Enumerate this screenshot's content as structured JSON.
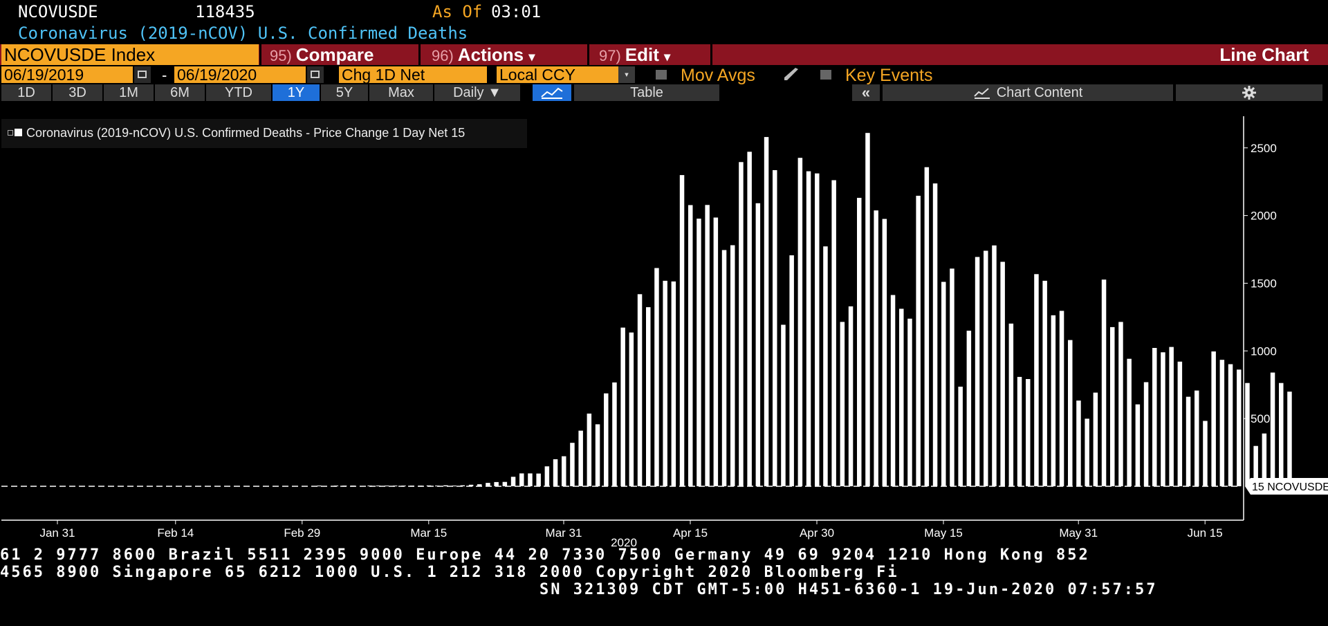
{
  "header": {
    "ticker": "NCOVUSDE",
    "last_value": "118435",
    "asof_label": "As Of",
    "asof_time": "03:01",
    "subtitle": "Coronavirus (2019-nCOV) U.S. Confirmed Deaths"
  },
  "toolbar": {
    "security": "NCOVUSDE Index",
    "compare_num": "95)",
    "compare_label": "Compare",
    "actions_num": "96)",
    "actions_label": "Actions",
    "edit_num": "97)",
    "edit_label": "Edit",
    "dropdown_glyph": "▾",
    "chart_type": "Line Chart"
  },
  "controls": {
    "start_date": "06/19/2019",
    "date_sep": "-",
    "end_date": "06/19/2020",
    "field": "Chg 1D Net",
    "currency": "Local CCY",
    "mov_avgs": "Mov Avgs",
    "key_events": "Key Events"
  },
  "periods": [
    "1D",
    "3D",
    "1M",
    "6M",
    "YTD",
    "1Y",
    "5Y",
    "Max"
  ],
  "selected_period": "1Y",
  "frequency": "Daily ▼",
  "table_label": "Table",
  "collapse_label": "«",
  "chart_content_label": "Chart Content",
  "settings_icon": "gear-icon",
  "colors": {
    "orange": "#f5a623",
    "red_bar": "#8b1421",
    "blue_sel": "#1e6fd9",
    "cyan": "#4fc3f7"
  },
  "chart_data": {
    "type": "bar",
    "legend": "Coronavirus (2019-nCOV) U.S. Confirmed Deaths - Price Change 1 Day Net 15",
    "x_tick_labels": [
      "Jan 31",
      "Feb 14",
      "Feb 29",
      "Mar 15",
      "Mar 31",
      "Apr 15",
      "Apr 30",
      "May 15",
      "May 31",
      "Jun 15"
    ],
    "x_year_label": "2020",
    "y_tick_labels": [
      "500",
      "1000",
      "1500",
      "2000",
      "2500"
    ],
    "ylim": [
      0,
      2700
    ],
    "last_value_tag": "15 NCOVUSDE",
    "last_value": 15,
    "grid": false,
    "series": [
      {
        "start_date": "2020-01-21",
        "values": [
          0,
          0,
          0,
          0,
          0,
          0,
          0,
          0,
          0,
          0,
          0,
          0,
          0,
          0,
          0,
          0,
          0,
          0,
          0,
          0,
          0,
          0,
          0,
          0,
          0,
          0,
          0,
          0,
          0,
          0,
          0,
          0,
          0,
          0,
          0,
          0,
          0,
          0,
          0,
          0,
          0,
          1,
          0,
          2,
          1,
          2,
          0,
          1,
          1,
          2,
          4,
          1,
          4,
          3,
          6,
          4,
          7,
          5,
          7,
          11,
          15,
          25,
          31,
          32,
          70,
          95,
          95,
          94,
          147,
          200,
          222,
          321,
          411,
          537,
          458,
          686,
          767,
          1172,
          1136,
          1419,
          1323,
          1612,
          1518,
          1513,
          2299,
          2077,
          1977,
          2078,
          1985,
          1745,
          1781,
          2395,
          2471,
          2091,
          2580,
          2335,
          1193,
          1706,
          2426,
          2327,
          2311,
          1772,
          2261,
          1214,
          1329,
          2131,
          2610,
          2038,
          1975,
          1413,
          1311,
          1238,
          2146,
          2357,
          2237,
          1510,
          1608,
          736,
          1149,
          1694,
          1740,
          1779,
          1658,
          1202,
          808,
          792,
          1567,
          1518,
          1263,
          1296,
          1080,
          633,
          499,
          692,
          1527,
          1176,
          1214,
          942,
          605,
          769,
          1022,
          990,
          1029,
          921,
          661,
          707,
          483,
          996,
          934,
          902,
          862,
          763,
          298,
          390,
          840,
          763,
          699,
          15
        ]
      }
    ]
  },
  "footer": {
    "line1": "61 2 9777 8600 Brazil 5511 2395 9000 Europe 44 20 7330 7500 Germany 49 69 9204 1210 Hong Kong 852",
    "line2": " 4565 8900       Singapore 65 6212 1000     U.S. 1 212 318 2000        Copyright 2020 Bloomberg Fi",
    "line3": "SN 321309 CDT  GMT-5:00 H451-6360-1 19-Jun-2020 07:57:57"
  }
}
